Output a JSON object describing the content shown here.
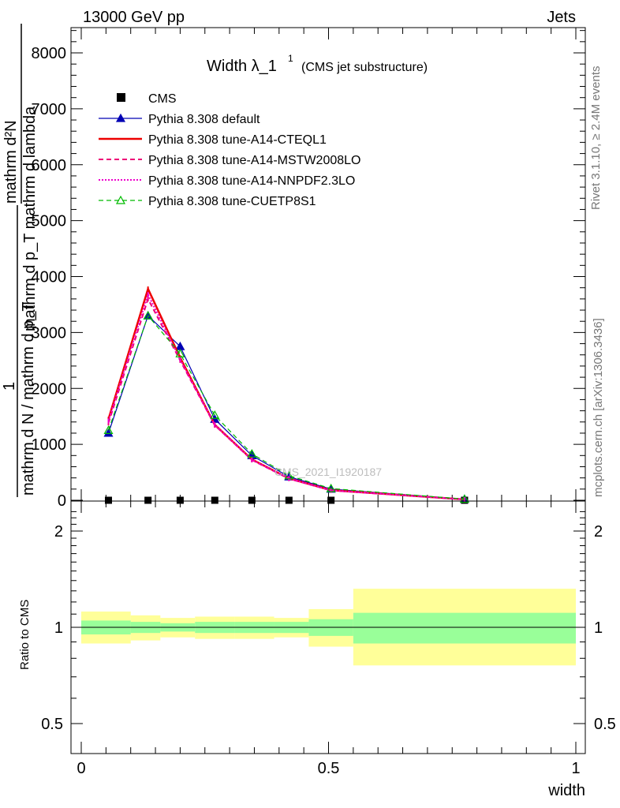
{
  "header": {
    "left": "13000 GeV pp",
    "right": "Jets"
  },
  "side": {
    "rivet": "Rivet 3.1.10, ≥ 2.4M events",
    "mcplots": "mcplots.cern.ch [arXiv:1306.3436]"
  },
  "chart_data": {
    "type": "line",
    "title_main": "Width λ_1",
    "title_sup": "1",
    "title_sub": "(CMS jet substructure)",
    "watermark": "CMS_2021_I1920187",
    "ylabel_line1": "mathrm d²N",
    "ylabel_line2": "mathrm d p_T mathrm d lambda",
    "ylabel_line3": "1",
    "ylabel_line4": "mathrm d N / mathrm d p_T",
    "xlabel": "width",
    "ratio_ylabel": "Ratio to CMS",
    "xlim": [
      0,
      1
    ],
    "ylim": [
      0,
      8500
    ],
    "ratio_ylim": [
      0.4,
      2.4
    ],
    "x_ticks": [
      "0",
      "0.5",
      "1"
    ],
    "y_ticks": [
      "0",
      "1000",
      "2000",
      "3000",
      "4000",
      "5000",
      "6000",
      "7000",
      "8000"
    ],
    "ratio_ticks": [
      "0.5",
      "1",
      "2"
    ],
    "bins": [
      [
        0.0,
        0.1
      ],
      [
        0.1,
        0.16
      ],
      [
        0.16,
        0.23
      ],
      [
        0.23,
        0.31
      ],
      [
        0.31,
        0.39
      ],
      [
        0.39,
        0.46
      ],
      [
        0.46,
        0.55
      ],
      [
        0.55,
        1.0
      ]
    ],
    "x": [
      0.055,
      0.135,
      0.2,
      0.27,
      0.345,
      0.42,
      0.505,
      0.775
    ],
    "series": [
      {
        "name": "CMS",
        "color": "#000000",
        "style": "data",
        "values": [
          0,
          0,
          0,
          0,
          0,
          0,
          0,
          0
        ]
      },
      {
        "name": "Pythia 8.308 default",
        "color": "#0000b4",
        "style": "solid-triangle",
        "values": [
          1200,
          3300,
          2750,
          1450,
          800,
          420,
          200,
          20
        ]
      },
      {
        "name": "Pythia 8.308 tune-A14-CTEQL1",
        "color": "#ee0000",
        "style": "solid-thick",
        "values": [
          1450,
          3780,
          2550,
          1350,
          730,
          390,
          180,
          15
        ]
      },
      {
        "name": "Pythia 8.308 tune-A14-MSTW2008LO",
        "color": "#ee0077",
        "style": "dashed",
        "values": [
          1380,
          3600,
          2500,
          1340,
          720,
          385,
          175,
          15
        ]
      },
      {
        "name": "Pythia 8.308 tune-A14-NNPDF2.3LO",
        "color": "#ee00cc",
        "style": "dotted",
        "values": [
          1420,
          3680,
          2520,
          1350,
          725,
          388,
          178,
          15
        ]
      },
      {
        "name": "Pythia 8.308 tune-CUETP8S1",
        "color": "#00bb00",
        "style": "dashed-open-triangle",
        "values": [
          1250,
          3300,
          2620,
          1520,
          830,
          440,
          210,
          20
        ]
      }
    ],
    "ratio_bands": {
      "green_color": "#99ff99",
      "yellow_color": "#ffff99",
      "green": [
        [
          0.95,
          1.05
        ],
        [
          0.96,
          1.04
        ],
        [
          0.97,
          1.03
        ],
        [
          0.96,
          1.04
        ],
        [
          0.96,
          1.04
        ],
        [
          0.96,
          1.04
        ],
        [
          0.94,
          1.06
        ],
        [
          0.89,
          1.11
        ]
      ],
      "yellow": [
        [
          0.89,
          1.12
        ],
        [
          0.91,
          1.09
        ],
        [
          0.93,
          1.07
        ],
        [
          0.92,
          1.08
        ],
        [
          0.92,
          1.08
        ],
        [
          0.93,
          1.07
        ],
        [
          0.87,
          1.14
        ],
        [
          0.76,
          1.32
        ]
      ]
    }
  }
}
